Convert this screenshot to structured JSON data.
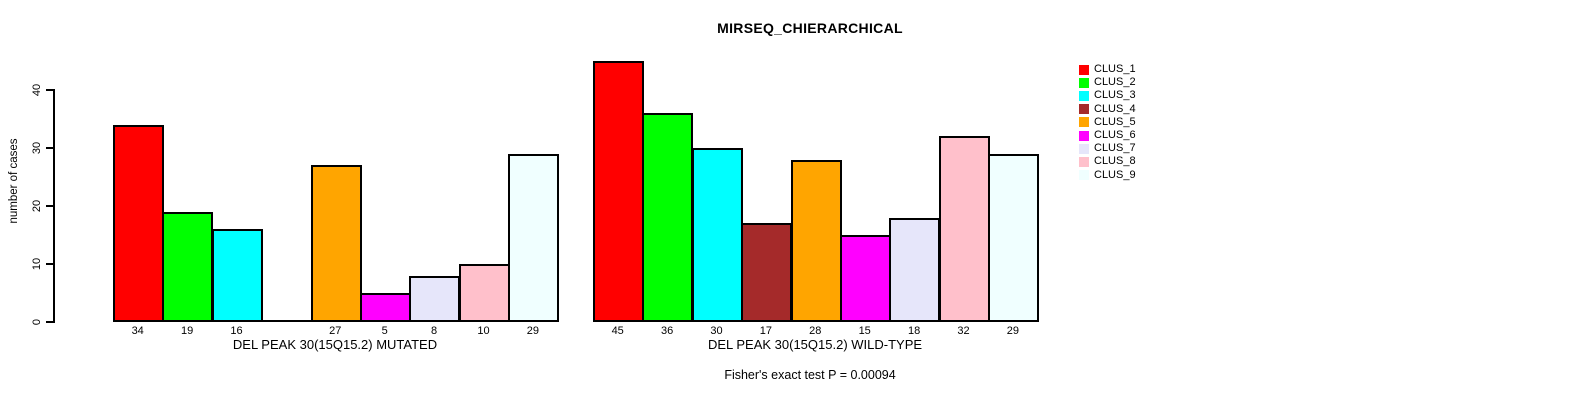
{
  "title": "MIRSEQ_CHIERARCHICAL",
  "footer": "Fisher's exact test P = 0.00094",
  "y_axis": {
    "label": "number of cases",
    "ticks": [
      0,
      10,
      20,
      30,
      40
    ]
  },
  "legend": {
    "position": "right",
    "entries": [
      {
        "label": "CLUS_1",
        "color": "#FF0000"
      },
      {
        "label": "CLUS_2",
        "color": "#00FF00"
      },
      {
        "label": "CLUS_3",
        "color": "#00FFFF"
      },
      {
        "label": "CLUS_4",
        "color": "#A52A2A"
      },
      {
        "label": "CLUS_5",
        "color": "#FFA500"
      },
      {
        "label": "CLUS_6",
        "color": "#FF00FF"
      },
      {
        "label": "CLUS_7",
        "color": "#E6E6FA"
      },
      {
        "label": "CLUS_8",
        "color": "#FFC0CB"
      },
      {
        "label": "CLUS_9",
        "color": "#F0FFFF"
      }
    ]
  },
  "chart_data": [
    {
      "type": "bar",
      "panel": "mutated",
      "title": "MIRSEQ_CHIERARCHICAL",
      "xlabel": "DEL PEAK 30(15Q15.2) MUTATED",
      "ylabel": "number of cases",
      "categories": [
        "CLUS_1",
        "CLUS_2",
        "CLUS_3",
        "CLUS_4",
        "CLUS_5",
        "CLUS_6",
        "CLUS_7",
        "CLUS_8",
        "CLUS_9"
      ],
      "values": [
        34,
        19,
        16,
        0,
        27,
        5,
        8,
        10,
        29
      ],
      "bar_labels": [
        "34",
        "19",
        "16",
        "",
        "27",
        "5",
        "8",
        "10",
        "29"
      ],
      "ylim": [
        0,
        40
      ],
      "grid": false
    },
    {
      "type": "bar",
      "panel": "wild-type",
      "xlabel": "DEL PEAK 30(15Q15.2) WILD-TYPE",
      "ylabel": "",
      "categories": [
        "CLUS_1",
        "CLUS_2",
        "CLUS_3",
        "CLUS_4",
        "CLUS_5",
        "CLUS_6",
        "CLUS_7",
        "CLUS_8",
        "CLUS_9"
      ],
      "values": [
        45,
        36,
        30,
        17,
        28,
        15,
        18,
        32,
        29
      ],
      "bar_labels": [
        "45",
        "36",
        "30",
        "17",
        "28",
        "15",
        "18",
        "32",
        "29"
      ],
      "ylim": [
        0,
        45
      ],
      "grid": false
    }
  ]
}
